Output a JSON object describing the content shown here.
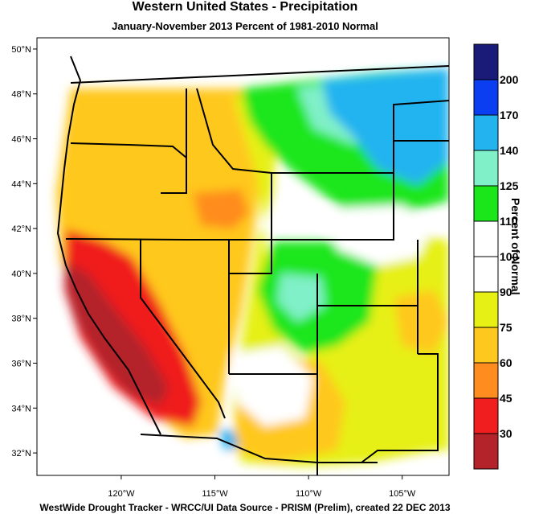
{
  "header": {
    "title": "Western United States - Precipitation",
    "subtitle": "January-November 2013  Percent of 1981-2010 Normal"
  },
  "footer": {
    "credit": "WestWide Drought Tracker - WRCC/UI  Data Source - PRISM (Prelim), created 22 DEC 2013"
  },
  "map": {
    "extent": {
      "lon_min": -124.5,
      "lon_max": -102.5,
      "lat_min": 31.0,
      "lat_max": 50.5
    },
    "lat_ticks": [
      {
        "value": 50,
        "label": "50°N"
      },
      {
        "value": 48,
        "label": "48°N"
      },
      {
        "value": 46,
        "label": "46°N"
      },
      {
        "value": 44,
        "label": "44°N"
      },
      {
        "value": 42,
        "label": "42°N"
      },
      {
        "value": 40,
        "label": "40°N"
      },
      {
        "value": 38,
        "label": "38°N"
      },
      {
        "value": 36,
        "label": "36°N"
      },
      {
        "value": 34,
        "label": "34°N"
      },
      {
        "value": 32,
        "label": "32°N"
      }
    ],
    "lon_ticks": [
      {
        "value": -120,
        "label": "120°W"
      },
      {
        "value": -115,
        "label": "115°W"
      },
      {
        "value": -110,
        "label": "110°W"
      },
      {
        "value": -105,
        "label": "105°W"
      }
    ]
  },
  "legend": {
    "title": "Percent of Normal",
    "bins": [
      {
        "color": "#1a1a78",
        "label": "200"
      },
      {
        "color": "#0a3ef0",
        "label": "170"
      },
      {
        "color": "#23b4f0",
        "label": "140"
      },
      {
        "color": "#80f0c8",
        "label": "125"
      },
      {
        "color": "#1ae61a",
        "label": "110"
      },
      {
        "color": "#ffffff",
        "label": "100"
      },
      {
        "color": "#ffffff",
        "label": "90"
      },
      {
        "color": "#e6f014",
        "label": "75"
      },
      {
        "color": "#ffc81e",
        "label": "60"
      },
      {
        "color": "#ff8c1e",
        "label": "45"
      },
      {
        "color": "#f01e1e",
        "label": "30"
      },
      {
        "color": "#b4232a",
        "label": ""
      }
    ]
  }
}
